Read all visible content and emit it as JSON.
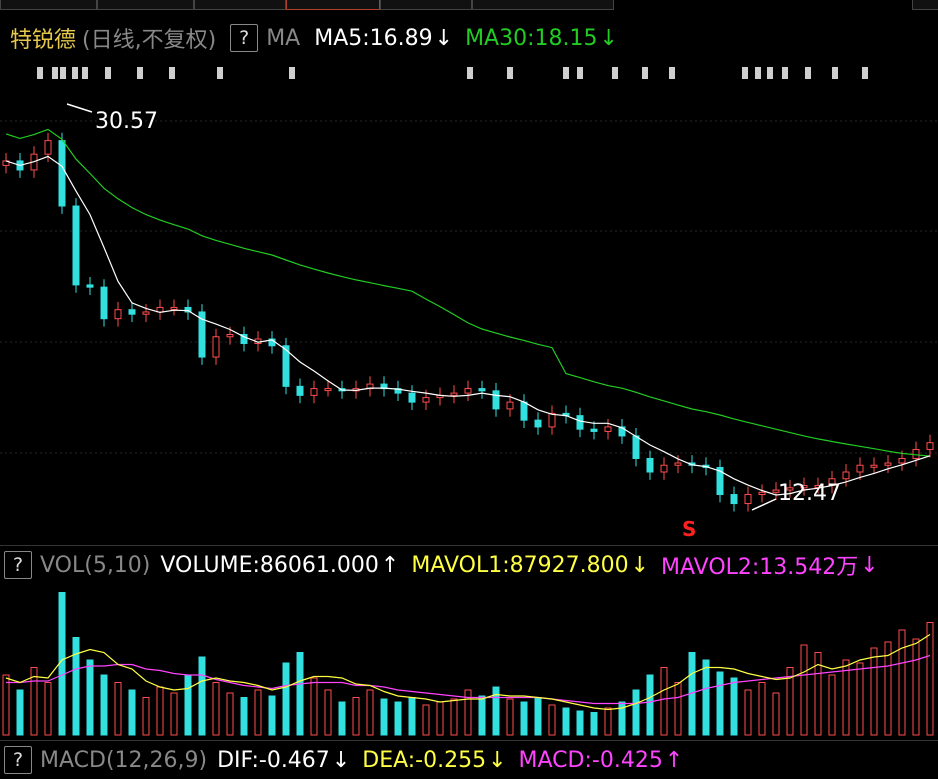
{
  "tabs": [
    "",
    "",
    "",
    "",
    "",
    "",
    ""
  ],
  "main": {
    "stock_name": "特锐德",
    "mode": "(日线,不复权)",
    "help": "?",
    "ma_label": "MA",
    "ma5": "MA5:16.89",
    "ma5_arrow": "↓",
    "ma30": "MA30:18.15",
    "ma30_arrow": "↓",
    "high_label": "30.57",
    "low_label": "12.47",
    "signal_label": "S"
  },
  "vol": {
    "help": "?",
    "label": "VOL(5,10)",
    "volume": "VOLUME:86061.000",
    "volume_arrow": "↑",
    "mavol1": "MAVOL1:87927.800",
    "mavol1_arrow": "↓",
    "mavol2": "MAVOL2:13.542万",
    "mavol2_arrow": "↓"
  },
  "macd": {
    "help": "?",
    "label": "MACD(12,26,9)",
    "dif": "DIF:-0.467",
    "dif_arrow": "↓",
    "dea": "DEA:-0.255",
    "dea_arrow": "↓",
    "macd": "MACD:-0.425",
    "macd_arrow": "↑"
  },
  "colors": {
    "up": "#ff4d4d",
    "down": "#33e0e0",
    "ma5": "#ffffff",
    "ma30": "#22cc22",
    "mavol1": "#ffff44",
    "mavol2": "#ff44ff"
  },
  "chart_data": {
    "type": "candlestick",
    "price_high": 30.57,
    "price_low": 12.47,
    "close": [
      28.0,
      27.6,
      28.3,
      28.9,
      26.0,
      22.5,
      22.4,
      21.0,
      21.4,
      21.2,
      21.3,
      21.5,
      21.5,
      21.3,
      19.3,
      20.2,
      20.3,
      19.9,
      20.1,
      19.8,
      18.0,
      17.6,
      17.9,
      17.9,
      17.8,
      17.9,
      18.1,
      17.9,
      17.7,
      17.3,
      17.5,
      17.6,
      17.7,
      17.9,
      17.8,
      17.0,
      17.3,
      16.5,
      16.2,
      16.8,
      16.7,
      16.1,
      16.0,
      16.2,
      15.8,
      14.8,
      14.2,
      14.5,
      14.6,
      14.5,
      14.4,
      13.2,
      12.8,
      13.2,
      13.3,
      13.4,
      13.5,
      13.6,
      13.6,
      13.9,
      14.2,
      14.5,
      14.5,
      14.6,
      14.8,
      15.2,
      15.5
    ],
    "volume": [
      40,
      30,
      45,
      35,
      95,
      65,
      50,
      40,
      35,
      30,
      25,
      32,
      28,
      40,
      52,
      35,
      28,
      25,
      30,
      26,
      48,
      55,
      38,
      30,
      22,
      25,
      30,
      24,
      22,
      25,
      20,
      22,
      24,
      30,
      26,
      32,
      24,
      22,
      25,
      20,
      18,
      16,
      15,
      18,
      22,
      30,
      40,
      45,
      35,
      55,
      50,
      42,
      38,
      30,
      35,
      28,
      45,
      60,
      55,
      40,
      50,
      48,
      58,
      62,
      70,
      64,
      75
    ],
    "mavol1": [
      38,
      35,
      39,
      38,
      50,
      54,
      57,
      55,
      47,
      44,
      36,
      32,
      30,
      31,
      36,
      38,
      36,
      35,
      33,
      30,
      32,
      36,
      39,
      39,
      38,
      34,
      33,
      29,
      26,
      25,
      24,
      22,
      23,
      24,
      24,
      27,
      26,
      26,
      25,
      24,
      22,
      20,
      18,
      17,
      18,
      21,
      25,
      30,
      34,
      41,
      45,
      45,
      44,
      41,
      39,
      37,
      38,
      42,
      47,
      44,
      46,
      50,
      52,
      53,
      58,
      61,
      67
    ],
    "mavol2": [
      35,
      35,
      36,
      36,
      40,
      44,
      46,
      46,
      47,
      47,
      44,
      43,
      41,
      40,
      40,
      37,
      35,
      33,
      32,
      31,
      33,
      34,
      35,
      35,
      35,
      33,
      33,
      32,
      30,
      29,
      28,
      27,
      26,
      25,
      25,
      25,
      25,
      25,
      25,
      24,
      23,
      22,
      21,
      21,
      21,
      21,
      22,
      24,
      25,
      28,
      31,
      33,
      35,
      36,
      37,
      38,
      39,
      40,
      41,
      42,
      43,
      44,
      45,
      46,
      48,
      50,
      53
    ]
  }
}
